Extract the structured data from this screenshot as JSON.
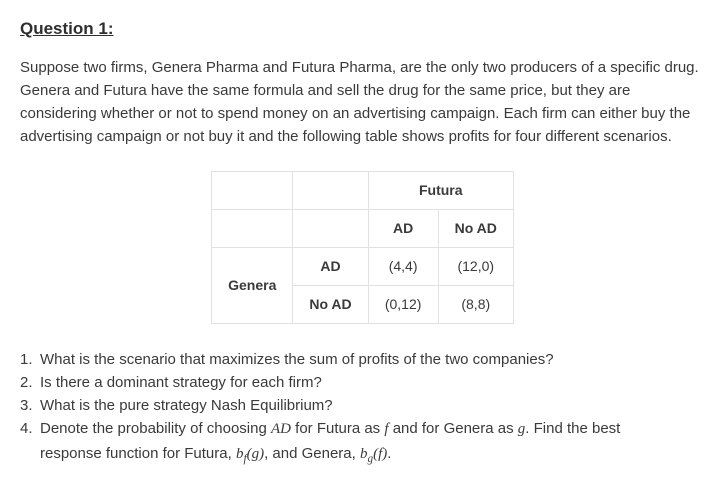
{
  "title": "Question 1:",
  "intro": "Suppose two firms, Genera Pharma and Futura Pharma, are the only two producers of a specific drug. Genera and Futura have the same formula and sell the drug for the same price, but they are considering whether or not to spend money on an advertising campaign. Each firm can either buy the advertising campaign or not buy it and the following table shows profits for four different scenarios.",
  "table": {
    "colPlayer": "Futura",
    "rowPlayer": "Genera",
    "colStrategies": [
      "AD",
      "No AD"
    ],
    "rowStrategies": [
      "AD",
      "No AD"
    ],
    "cells": [
      [
        "(4,4)",
        "(12,0)"
      ],
      [
        "(0,12)",
        "(8,8)"
      ]
    ],
    "borderColor": "#e1e1e1"
  },
  "questions": {
    "q1": {
      "num": "1.",
      "text": "What is the scenario that maximizes the sum of profits of the two companies?"
    },
    "q2": {
      "num": "2.",
      "text": "Is there a dominant strategy for each firm?"
    },
    "q3": {
      "num": "3.",
      "text": "What is the pure strategy Nash Equilibrium?"
    },
    "q4": {
      "num": "4.",
      "pre": "Denote the probability of choosing ",
      "var1": "AD",
      "mid1": " for Futura as ",
      "f": "f",
      "mid2": " and for Genera as ",
      "g": "g",
      "mid3": ". Find the best",
      "line2a": "response function for Futura, ",
      "bf_b": "b",
      "bf_sub": "f",
      "bf_arg": "(g)",
      "and": ", and Genera, ",
      "bg_b": "b",
      "bg_sub": "g",
      "bg_arg": "(f)",
      "end": "."
    }
  }
}
